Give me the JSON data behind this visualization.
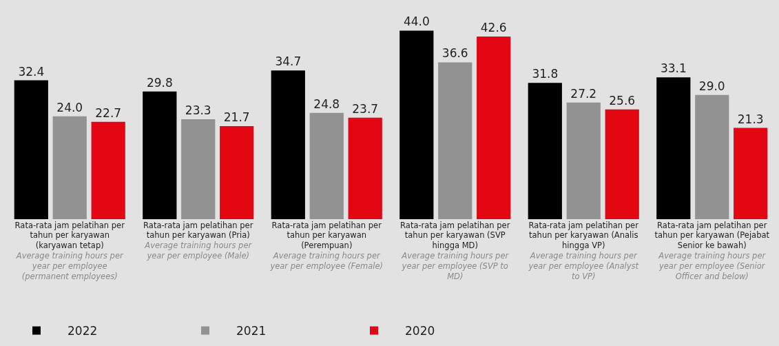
{
  "chart_data": {
    "type": "bar",
    "categories": [
      "Rata-rata jam pelatihan per tahun per karyawan (karyawan tetap)\nAverage training hours per year per employee (permanent employees)",
      "Rata-rata jam pelatihan per tahun per karyawan (Pria)\nAverage training hours per year per employee (Male)",
      "Rata-rata jam pelatihan per tahun per karyawan (Perempuan)\nAverage training hours per year per employee (Female)",
      "Rata-rata jam pelatihan per tahun per karyawan (SVP hingga MD)\nAverage training hours per year per employee (SVP to MD)",
      "Rata-rata jam pelatihan per tahun per karyawan (Analis hingga VP)\nAverage training hours per year per employee (Analyst to VP)",
      "Rata-rata jam pelatihan per tahun per karyawan (Pejabat Senior ke bawah)\nAverage training hours per year per employee (Senior Officer and below)"
    ],
    "series": [
      {
        "name": "2022",
        "color": "#000000",
        "values": [
          32.4,
          29.8,
          34.7,
          44.0,
          31.8,
          33.1
        ],
        "value_labels": [
          "32.4",
          "29.8",
          "34.7",
          "44.0",
          "31.8",
          "33.1"
        ]
      },
      {
        "name": "2021",
        "color": "#929292",
        "values": [
          24.0,
          23.3,
          24.8,
          36.6,
          27.2,
          29.0
        ],
        "value_labels": [
          "24.0",
          "23.3",
          "24.8",
          "36.6",
          "27.2",
          "29.0"
        ]
      },
      {
        "name": "2020",
        "color": "#e30613",
        "values": [
          22.7,
          21.7,
          23.7,
          42.6,
          25.6,
          21.3
        ],
        "value_labels": [
          "22.7",
          "21.7",
          "23.7",
          "42.6",
          "25.6",
          "21.3"
        ]
      }
    ],
    "legend": "bottom left",
    "grid": false
  }
}
